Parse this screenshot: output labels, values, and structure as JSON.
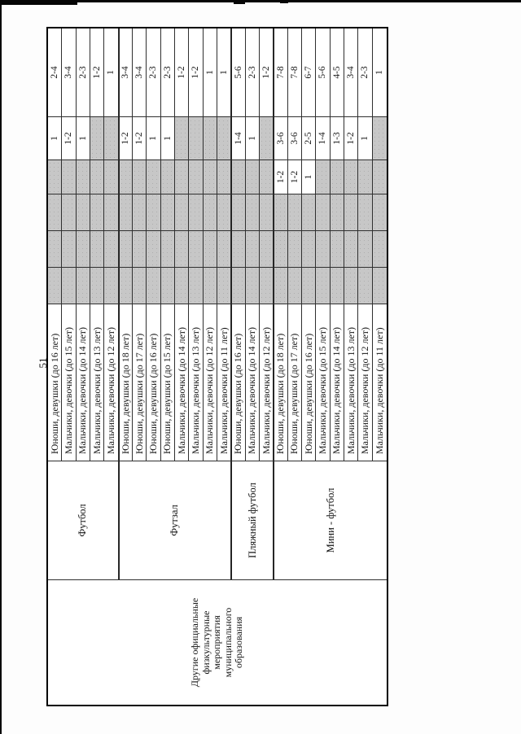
{
  "page": {
    "number": "51"
  },
  "table": {
    "category": {
      "lines": [
        "Другие официальные",
        "физкультурные",
        "мероприятия",
        "муниципального",
        "образования"
      ]
    },
    "sports": [
      {
        "name": "Футбол",
        "rowspan": 5
      },
      {
        "name": "Футзал",
        "rowspan": 8
      },
      {
        "name": "Пляжный футбол",
        "rowspan": 3
      },
      {
        "name": "Мини - футбол",
        "rowspan": 8
      }
    ],
    "rows": [
      {
        "age": "Юноши, девушки (до 16 лет)",
        "cells": [
          "",
          "",
          "",
          "",
          "1",
          "2-4"
        ]
      },
      {
        "age": "Мальчики, девочки (до 15 лет)",
        "cells": [
          "",
          "",
          "",
          "",
          "1-2",
          "3-4"
        ]
      },
      {
        "age": "Мальчики, девочки (до 14 лет)",
        "cells": [
          "",
          "",
          "",
          "",
          "1",
          "2-3"
        ]
      },
      {
        "age": "Мальчики, девочки (до 13 лет)",
        "cells": [
          "",
          "",
          "",
          "",
          "",
          "1-2"
        ]
      },
      {
        "age": "Мальчики, девочки (до 12 лет)",
        "cells": [
          "",
          "",
          "",
          "",
          "",
          "1"
        ]
      },
      {
        "age": "Юноши, девушки (до 18 лет)",
        "cells": [
          "",
          "",
          "",
          "",
          "1-2",
          "3-4"
        ]
      },
      {
        "age": "Юноши, девушки (до 17 лет)",
        "cells": [
          "",
          "",
          "",
          "",
          "1-2",
          "3-4"
        ]
      },
      {
        "age": "Юноши, девушки (до 16 лет)",
        "cells": [
          "",
          "",
          "",
          "",
          "1",
          "2-3"
        ]
      },
      {
        "age": "Юноши, девушки (до 15 лет)",
        "cells": [
          "",
          "",
          "",
          "",
          "1",
          "2-3"
        ]
      },
      {
        "age": "Мальчики, девочки (до 14 лет)",
        "cells": [
          "",
          "",
          "",
          "",
          "",
          "1-2"
        ]
      },
      {
        "age": "Мальчики, девочки (до 13 лет)",
        "cells": [
          "",
          "",
          "",
          "",
          "",
          "1-2"
        ]
      },
      {
        "age": "Мальчики, девочки (до 12 лет)",
        "cells": [
          "",
          "",
          "",
          "",
          "",
          "1"
        ]
      },
      {
        "age": "Мальчики, девочки (до 11 лет)",
        "cells": [
          "",
          "",
          "",
          "",
          "",
          "1"
        ]
      },
      {
        "age": "Юноши, девушки (до 16 лет)",
        "cells": [
          "",
          "",
          "",
          "",
          "1-4",
          "5-6"
        ]
      },
      {
        "age": "Мальчики, девочки (до 14 лет)",
        "cells": [
          "",
          "",
          "",
          "",
          "1",
          "2-3"
        ]
      },
      {
        "age": "Мальчики, девочки (до 12 лет)",
        "cells": [
          "",
          "",
          "",
          "",
          "",
          "1-2"
        ]
      },
      {
        "age": "Юноши, девушки (до 18 лет)",
        "cells": [
          "",
          "",
          "",
          "1-2",
          "3-6",
          "7-8"
        ]
      },
      {
        "age": "Юноши, девушки (до 17 лет)",
        "cells": [
          "",
          "",
          "",
          "1-2",
          "3-6",
          "7-8"
        ]
      },
      {
        "age": "Юноши, девушки (до 16 лет)",
        "cells": [
          "",
          "",
          "",
          "1",
          "2-5",
          "6-7"
        ]
      },
      {
        "age": "Мальчики, девочки (до 15 лет)",
        "cells": [
          "",
          "",
          "",
          "",
          "1-4",
          "5-6"
        ]
      },
      {
        "age": "Мальчики, девочки (до 14 лет)",
        "cells": [
          "",
          "",
          "",
          "",
          "1-3",
          "4-5"
        ]
      },
      {
        "age": "Мальчики, девочки (до 13 лет)",
        "cells": [
          "",
          "",
          "",
          "",
          "1-2",
          "3-4"
        ]
      },
      {
        "age": "Мальчики, девочки (до 12 лет)",
        "cells": [
          "",
          "",
          "",
          "",
          "1",
          "2-3"
        ]
      },
      {
        "age": "Мальчики, девочки (до 11 лет)",
        "cells": [
          "",
          "",
          "",
          "",
          "",
          "1"
        ]
      }
    ]
  },
  "colors": {
    "shaded": "#c7c7c7",
    "line": "#2f2f2f",
    "frame": "#000000"
  }
}
